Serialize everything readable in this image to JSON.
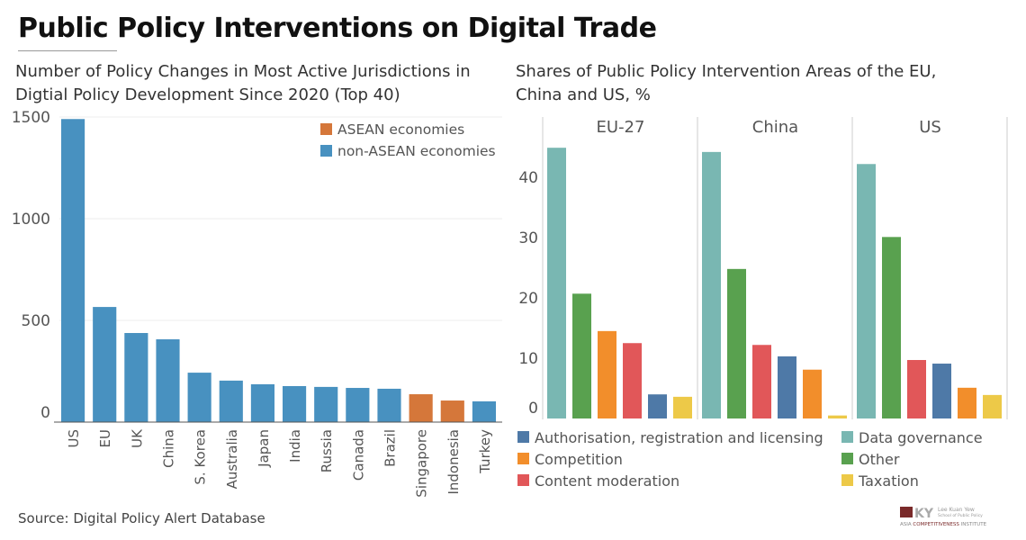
{
  "title": "Public Policy Interventions on Digital Trade",
  "source": "Source: Digital Policy Alert Database",
  "logo": {
    "text": "LKY Lee Kuan Yew School of Public Policy Asia Competitiveness Institute",
    "mark_color": "#7a2a2a"
  },
  "chart_data": [
    {
      "type": "bar",
      "title": "Number of Policy Changes in Most Active Jurisdictions in Digtial Policy Development Since 2020 (Top 40)",
      "categories": [
        "US",
        "EU",
        "UK",
        "China",
        "S. Korea",
        "Australia",
        "Japan",
        "India",
        "Russia",
        "Canada",
        "Brazil",
        "Singapore",
        "Indonesia",
        "Turkey"
      ],
      "values": [
        1490,
        566,
        438,
        407,
        243,
        204,
        186,
        177,
        173,
        168,
        164,
        137,
        106,
        102
      ],
      "groups": [
        "non-ASEAN economies",
        "non-ASEAN economies",
        "non-ASEAN economies",
        "non-ASEAN economies",
        "non-ASEAN economies",
        "non-ASEAN economies",
        "non-ASEAN economies",
        "non-ASEAN economies",
        "non-ASEAN economies",
        "non-ASEAN economies",
        "non-ASEAN economies",
        "ASEAN economies",
        "ASEAN economies",
        "non-ASEAN economies"
      ],
      "yticks": [
        0,
        500,
        1000,
        1500
      ],
      "ylim": [
        0,
        1500
      ],
      "grid": true,
      "legend_position": "top-right",
      "legend": [
        {
          "name": "ASEAN economies",
          "color": "#d5773a"
        },
        {
          "name": "non-ASEAN economies",
          "color": "#4891c0"
        }
      ]
    },
    {
      "type": "bar",
      "title": "Shares of Public Policy Intervention Areas of the EU, China and US, %",
      "panels": [
        {
          "name": "EU-27",
          "bars": [
            [
              "Data governance",
              44.9
            ],
            [
              "Other",
              20.7
            ],
            [
              "Competition",
              14.5
            ],
            [
              "Content moderation",
              12.5
            ],
            [
              "Authorisation, registration and licensing",
              4.0
            ],
            [
              "Taxation",
              3.6
            ]
          ]
        },
        {
          "name": "China",
          "bars": [
            [
              "Data governance",
              44.2
            ],
            [
              "Other",
              24.8
            ],
            [
              "Content moderation",
              12.2
            ],
            [
              "Authorisation, registration and licensing",
              10.3
            ],
            [
              "Competition",
              8.1
            ],
            [
              "Taxation",
              0.5
            ]
          ]
        },
        {
          "name": "US",
          "bars": [
            [
              "Data governance",
              42.2
            ],
            [
              "Other",
              30.1
            ],
            [
              "Content moderation",
              9.7
            ],
            [
              "Authorisation, registration and licensing",
              9.1
            ],
            [
              "Competition",
              5.1
            ],
            [
              "Taxation",
              3.9
            ]
          ]
        }
      ],
      "yticks": [
        0,
        10,
        20,
        30,
        40
      ],
      "ylim": [
        0,
        50
      ],
      "legend_position": "bottom",
      "legend": [
        {
          "name": "Authorisation, registration and licensing",
          "color": "#4e79a7"
        },
        {
          "name": "Data governance",
          "color": "#79b7b2"
        },
        {
          "name": "Competition",
          "color": "#f28e2b"
        },
        {
          "name": "Other",
          "color": "#59a14f"
        },
        {
          "name": "Content moderation",
          "color": "#e15759"
        },
        {
          "name": "Taxation",
          "color": "#edc948"
        }
      ]
    }
  ]
}
